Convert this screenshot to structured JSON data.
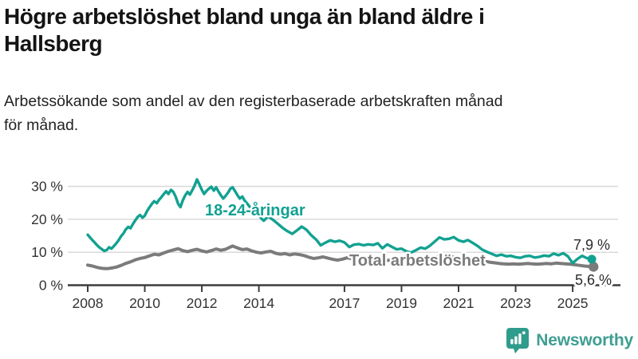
{
  "page": {
    "title_line1": "Högre arbetslöshet bland unga än bland äldre i",
    "title_line2": "Hallsberg",
    "subtitle_line1": "Arbetssökande som andel av den registerbaserade arbetskraften månad",
    "subtitle_line2": "för månad."
  },
  "branding": {
    "logo_text": "Newsworthy",
    "logo_icon": "bar-chart-speech-bubble-icon",
    "logo_color": "#3f9e92"
  },
  "colors": {
    "youth_line": "#12a191",
    "total_line": "#7b7b7b",
    "grid": "#d9d9d9",
    "axis": "#3c3c3c",
    "tick_text": "#333333",
    "value_text": "#2b2b2b",
    "title_text": "#141414",
    "background": "#ffffff"
  },
  "chart_data": {
    "type": "line",
    "title": "Högre arbetslöshet bland unga än bland äldre i Hallsberg",
    "subtitle": "Arbetssökande som andel av den registerbaserade arbetskraften månad för månad.",
    "unit": "%",
    "grid": true,
    "legend_position": "inline-labels",
    "xlim": [
      2007.3,
      2026.3
    ],
    "ylim": [
      0,
      34
    ],
    "x_tick_years": [
      2008,
      2010,
      2012,
      2014,
      2017,
      2019,
      2021,
      2023,
      2025
    ],
    "x_tick_labels": [
      "2008",
      "2010",
      "2012",
      "2014",
      "2017",
      "2019",
      "2021",
      "2023",
      "2025"
    ],
    "y_ticks": [
      0,
      10,
      20,
      30
    ],
    "y_tick_suffix": " %",
    "series": [
      {
        "name": "18-24-åringar",
        "color": "#12a191",
        "end_value": 7.9,
        "end_label": "7,9 %",
        "points": [
          [
            2008.0,
            15.3
          ],
          [
            2008.08,
            14.5
          ],
          [
            2008.17,
            13.6
          ],
          [
            2008.25,
            12.9
          ],
          [
            2008.33,
            12.1
          ],
          [
            2008.42,
            11.4
          ],
          [
            2008.5,
            10.9
          ],
          [
            2008.58,
            10.4
          ],
          [
            2008.67,
            10.7
          ],
          [
            2008.75,
            11.5
          ],
          [
            2008.83,
            11.1
          ],
          [
            2008.92,
            11.9
          ],
          [
            2009.0,
            12.7
          ],
          [
            2009.08,
            13.6
          ],
          [
            2009.17,
            14.9
          ],
          [
            2009.25,
            15.7
          ],
          [
            2009.33,
            16.9
          ],
          [
            2009.42,
            17.7
          ],
          [
            2009.5,
            17.3
          ],
          [
            2009.58,
            18.5
          ],
          [
            2009.67,
            19.7
          ],
          [
            2009.75,
            20.7
          ],
          [
            2009.83,
            21.3
          ],
          [
            2009.92,
            20.5
          ],
          [
            2010.0,
            21.1
          ],
          [
            2010.08,
            22.5
          ],
          [
            2010.17,
            23.7
          ],
          [
            2010.25,
            24.7
          ],
          [
            2010.33,
            25.5
          ],
          [
            2010.42,
            24.9
          ],
          [
            2010.5,
            25.9
          ],
          [
            2010.58,
            26.7
          ],
          [
            2010.67,
            27.7
          ],
          [
            2010.75,
            28.5
          ],
          [
            2010.83,
            27.7
          ],
          [
            2010.92,
            28.9
          ],
          [
            2011.0,
            28.3
          ],
          [
            2011.08,
            26.9
          ],
          [
            2011.17,
            24.7
          ],
          [
            2011.25,
            23.7
          ],
          [
            2011.33,
            25.7
          ],
          [
            2011.42,
            27.3
          ],
          [
            2011.5,
            28.3
          ],
          [
            2011.58,
            27.5
          ],
          [
            2011.67,
            28.9
          ],
          [
            2011.75,
            30.3
          ],
          [
            2011.83,
            32.1
          ],
          [
            2011.92,
            30.5
          ],
          [
            2012.0,
            28.9
          ],
          [
            2012.08,
            27.7
          ],
          [
            2012.17,
            28.7
          ],
          [
            2012.25,
            29.3
          ],
          [
            2012.33,
            29.9
          ],
          [
            2012.42,
            28.7
          ],
          [
            2012.5,
            29.7
          ],
          [
            2012.58,
            28.5
          ],
          [
            2012.67,
            27.3
          ],
          [
            2012.75,
            26.3
          ],
          [
            2012.83,
            27.1
          ],
          [
            2012.92,
            28.1
          ],
          [
            2013.0,
            29.3
          ],
          [
            2013.08,
            29.7
          ],
          [
            2013.17,
            28.5
          ],
          [
            2013.25,
            27.3
          ],
          [
            2013.33,
            26.3
          ],
          [
            2013.42,
            26.9
          ],
          [
            2013.5,
            25.7
          ],
          [
            2013.58,
            24.9
          ],
          [
            2013.67,
            23.9
          ],
          [
            2013.75,
            23.1
          ],
          [
            2013.83,
            22.3
          ],
          [
            2013.92,
            21.7
          ],
          [
            2014.0,
            21.3
          ],
          [
            2014.08,
            20.3
          ],
          [
            2014.17,
            19.6
          ],
          [
            2014.33,
            20.9
          ],
          [
            2014.5,
            19.8
          ],
          [
            2014.67,
            18.6
          ],
          [
            2014.83,
            17.4
          ],
          [
            2015.0,
            16.4
          ],
          [
            2015.17,
            15.6
          ],
          [
            2015.33,
            16.6
          ],
          [
            2015.5,
            17.8
          ],
          [
            2015.67,
            16.8
          ],
          [
            2015.83,
            15.2
          ],
          [
            2016.0,
            13.9
          ],
          [
            2016.17,
            12.1
          ],
          [
            2016.33,
            12.9
          ],
          [
            2016.5,
            13.6
          ],
          [
            2016.67,
            13.2
          ],
          [
            2016.83,
            13.5
          ],
          [
            2017.0,
            13.0
          ],
          [
            2017.17,
            11.6
          ],
          [
            2017.33,
            12.3
          ],
          [
            2017.5,
            12.5
          ],
          [
            2017.67,
            12.1
          ],
          [
            2017.83,
            12.4
          ],
          [
            2018.0,
            12.2
          ],
          [
            2018.17,
            12.7
          ],
          [
            2018.33,
            11.2
          ],
          [
            2018.5,
            12.4
          ],
          [
            2018.67,
            11.6
          ],
          [
            2018.83,
            10.9
          ],
          [
            2019.0,
            11.1
          ],
          [
            2019.17,
            10.3
          ],
          [
            2019.33,
            9.9
          ],
          [
            2019.5,
            10.6
          ],
          [
            2019.67,
            11.4
          ],
          [
            2019.83,
            11.1
          ],
          [
            2020.0,
            12.0
          ],
          [
            2020.17,
            13.3
          ],
          [
            2020.33,
            14.5
          ],
          [
            2020.5,
            13.9
          ],
          [
            2020.67,
            14.1
          ],
          [
            2020.83,
            14.6
          ],
          [
            2021.0,
            13.6
          ],
          [
            2021.17,
            13.2
          ],
          [
            2021.33,
            13.7
          ],
          [
            2021.5,
            12.8
          ],
          [
            2021.67,
            11.9
          ],
          [
            2021.83,
            10.8
          ],
          [
            2022.0,
            10.1
          ],
          [
            2022.17,
            9.5
          ],
          [
            2022.33,
            8.9
          ],
          [
            2022.5,
            9.3
          ],
          [
            2022.67,
            8.8
          ],
          [
            2022.83,
            8.9
          ],
          [
            2023.0,
            8.5
          ],
          [
            2023.17,
            8.3
          ],
          [
            2023.33,
            8.8
          ],
          [
            2023.5,
            8.9
          ],
          [
            2023.67,
            8.4
          ],
          [
            2023.83,
            8.6
          ],
          [
            2024.0,
            9.0
          ],
          [
            2024.17,
            8.8
          ],
          [
            2024.33,
            9.6
          ],
          [
            2024.5,
            9.1
          ],
          [
            2024.67,
            9.7
          ],
          [
            2024.83,
            8.8
          ],
          [
            2025.0,
            6.7
          ],
          [
            2025.17,
            8.0
          ],
          [
            2025.33,
            8.9
          ],
          [
            2025.5,
            8.2
          ],
          [
            2025.67,
            7.9
          ]
        ]
      },
      {
        "name": "Total arbetslöshet",
        "color": "#7b7b7b",
        "end_value": 5.6,
        "end_label": "5,6 %",
        "points": [
          [
            2008.0,
            6.1
          ],
          [
            2008.17,
            5.8
          ],
          [
            2008.33,
            5.4
          ],
          [
            2008.5,
            5.1
          ],
          [
            2008.67,
            5.0
          ],
          [
            2008.83,
            5.2
          ],
          [
            2009.0,
            5.5
          ],
          [
            2009.17,
            6.0
          ],
          [
            2009.33,
            6.6
          ],
          [
            2009.5,
            7.1
          ],
          [
            2009.67,
            7.7
          ],
          [
            2009.83,
            8.1
          ],
          [
            2010.0,
            8.4
          ],
          [
            2010.17,
            8.9
          ],
          [
            2010.33,
            9.4
          ],
          [
            2010.5,
            9.2
          ],
          [
            2010.67,
            9.8
          ],
          [
            2010.83,
            10.3
          ],
          [
            2011.0,
            10.7
          ],
          [
            2011.17,
            11.1
          ],
          [
            2011.33,
            10.5
          ],
          [
            2011.5,
            10.2
          ],
          [
            2011.67,
            10.6
          ],
          [
            2011.83,
            10.9
          ],
          [
            2012.0,
            10.4
          ],
          [
            2012.17,
            10.1
          ],
          [
            2012.33,
            10.5
          ],
          [
            2012.5,
            11.0
          ],
          [
            2012.67,
            10.6
          ],
          [
            2012.83,
            10.9
          ],
          [
            2013.0,
            11.6
          ],
          [
            2013.08,
            11.9
          ],
          [
            2013.25,
            11.3
          ],
          [
            2013.42,
            10.8
          ],
          [
            2013.58,
            11.0
          ],
          [
            2013.75,
            10.4
          ],
          [
            2013.92,
            10.0
          ],
          [
            2014.08,
            9.8
          ],
          [
            2014.25,
            10.1
          ],
          [
            2014.42,
            10.3
          ],
          [
            2014.58,
            9.7
          ],
          [
            2014.75,
            9.4
          ],
          [
            2014.92,
            9.6
          ],
          [
            2015.08,
            9.2
          ],
          [
            2015.25,
            9.5
          ],
          [
            2015.42,
            9.3
          ],
          [
            2015.58,
            9.0
          ],
          [
            2015.75,
            8.5
          ],
          [
            2015.92,
            8.1
          ],
          [
            2016.08,
            8.3
          ],
          [
            2016.25,
            8.6
          ],
          [
            2016.42,
            8.2
          ],
          [
            2016.58,
            7.9
          ],
          [
            2016.75,
            7.6
          ],
          [
            2016.92,
            7.9
          ],
          [
            2017.08,
            8.3
          ],
          [
            2017.25,
            8.1
          ],
          [
            2017.42,
            7.9
          ],
          [
            2017.58,
            8.1
          ],
          [
            2017.75,
            8.3
          ],
          [
            2017.92,
            8.0
          ],
          [
            2018.08,
            7.8
          ],
          [
            2018.25,
            7.6
          ],
          [
            2018.42,
            7.4
          ],
          [
            2018.58,
            7.6
          ],
          [
            2018.75,
            7.8
          ],
          [
            2018.92,
            7.4
          ],
          [
            2019.08,
            7.2
          ],
          [
            2019.25,
            7.4
          ],
          [
            2019.42,
            7.6
          ],
          [
            2019.58,
            7.4
          ],
          [
            2019.75,
            7.2
          ],
          [
            2019.92,
            7.5
          ],
          [
            2020.08,
            8.0
          ],
          [
            2020.25,
            8.6
          ],
          [
            2020.42,
            9.0
          ],
          [
            2020.58,
            8.8
          ],
          [
            2020.75,
            8.6
          ],
          [
            2020.92,
            8.5
          ],
          [
            2021.08,
            8.4
          ],
          [
            2021.25,
            8.6
          ],
          [
            2021.42,
            8.3
          ],
          [
            2021.58,
            8.0
          ],
          [
            2021.75,
            7.7
          ],
          [
            2021.92,
            7.3
          ],
          [
            2022.08,
            7.0
          ],
          [
            2022.25,
            6.8
          ],
          [
            2022.42,
            6.6
          ],
          [
            2022.58,
            6.5
          ],
          [
            2022.75,
            6.4
          ],
          [
            2022.92,
            6.5
          ],
          [
            2023.08,
            6.4
          ],
          [
            2023.25,
            6.5
          ],
          [
            2023.42,
            6.6
          ],
          [
            2023.58,
            6.5
          ],
          [
            2023.75,
            6.4
          ],
          [
            2023.92,
            6.5
          ],
          [
            2024.08,
            6.6
          ],
          [
            2024.25,
            6.5
          ],
          [
            2024.42,
            6.7
          ],
          [
            2024.58,
            6.6
          ],
          [
            2024.75,
            6.5
          ],
          [
            2024.92,
            6.4
          ],
          [
            2025.08,
            6.2
          ],
          [
            2025.25,
            6.0
          ],
          [
            2025.42,
            5.8
          ],
          [
            2025.58,
            5.7
          ],
          [
            2025.73,
            5.6
          ]
        ]
      }
    ]
  }
}
